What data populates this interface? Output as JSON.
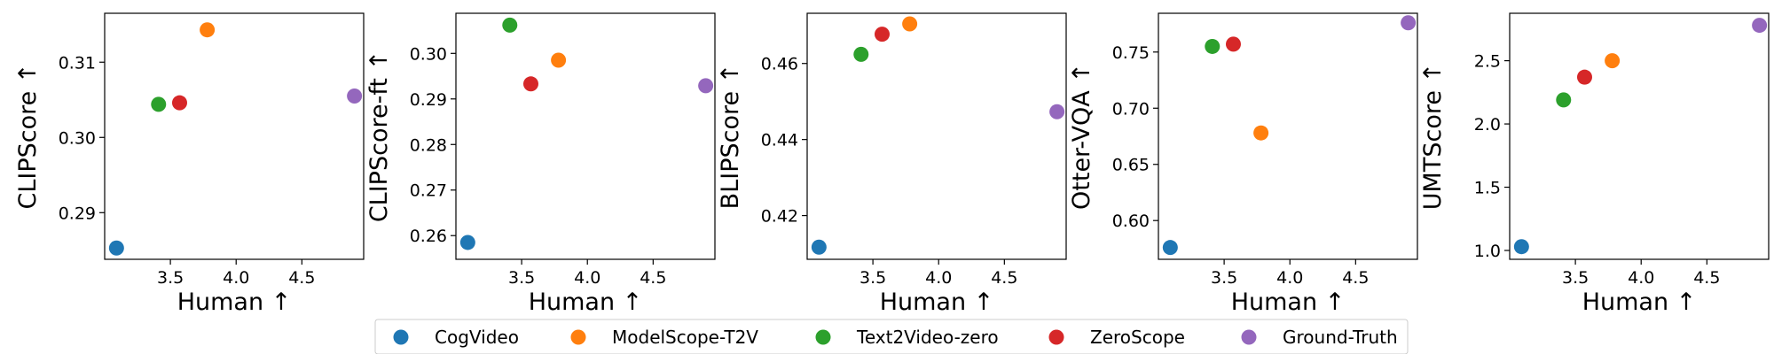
{
  "chart_data": {
    "type": "scatter",
    "series_names": [
      "CogVideo",
      "ModelScope-T2V",
      "Text2Video-zero",
      "ZeroScope",
      "Ground-Truth"
    ],
    "colors": {
      "CogVideo": "#1f77b4",
      "ModelScope-T2V": "#ff7f0e",
      "Text2Video-zero": "#2ca02c",
      "ZeroScope": "#d62728",
      "Ground-Truth": "#9467bd"
    },
    "legend": {
      "placement": "bottom-center",
      "entries": [
        "CogVideo",
        "ModelScope-T2V",
        "Text2Video-zero",
        "ZeroScope",
        "Ground-Truth"
      ]
    },
    "human_scores": {
      "CogVideo": 3.09,
      "ModelScope-T2V": 3.78,
      "Text2Video-zero": 3.41,
      "ZeroScope": 3.57,
      "Ground-Truth": 4.9
    },
    "panels": [
      {
        "xlabel": "Human ↑",
        "ylabel": "CLIPScore ↑",
        "xlim": [
          3.0,
          4.97
        ],
        "ylim": [
          0.2838,
          0.3165
        ],
        "xticks": [
          3.5,
          4.0,
          4.5
        ],
        "xtick_labels": [
          "3.5",
          "4.0",
          "4.5"
        ],
        "yticks": [
          0.29,
          0.3,
          0.31
        ],
        "ytick_labels": [
          "0.29",
          "0.30",
          "0.31"
        ],
        "y_values": {
          "CogVideo": 0.2853,
          "ModelScope-T2V": 0.3143,
          "Text2Video-zero": 0.3044,
          "ZeroScope": 0.3046,
          "Ground-Truth": 0.3055
        }
      },
      {
        "xlabel": "Human ↑",
        "ylabel": "CLIPScore-ft ↑",
        "xlim": [
          3.0,
          4.97
        ],
        "ylim": [
          0.2548,
          0.3088
        ],
        "xticks": [
          3.5,
          4.0,
          4.5
        ],
        "xtick_labels": [
          "3.5",
          "4.0",
          "4.5"
        ],
        "yticks": [
          0.26,
          0.27,
          0.28,
          0.29,
          0.3
        ],
        "ytick_labels": [
          "0.26",
          "0.27",
          "0.28",
          "0.29",
          "0.30"
        ],
        "y_values": {
          "CogVideo": 0.2585,
          "ModelScope-T2V": 0.2985,
          "Text2Video-zero": 0.3062,
          "ZeroScope": 0.2933,
          "Ground-Truth": 0.2929
        }
      },
      {
        "xlabel": "Human ↑",
        "ylabel": "BLIPScore ↑",
        "xlim": [
          3.0,
          4.97
        ],
        "ylim": [
          0.4085,
          0.4732
        ],
        "xticks": [
          3.5,
          4.0,
          4.5
        ],
        "xtick_labels": [
          "3.5",
          "4.0",
          "4.5"
        ],
        "yticks": [
          0.42,
          0.44,
          0.46
        ],
        "ytick_labels": [
          "0.42",
          "0.44",
          "0.46"
        ],
        "y_values": {
          "CogVideo": 0.4117,
          "ModelScope-T2V": 0.4704,
          "Text2Video-zero": 0.4624,
          "ZeroScope": 0.4677,
          "Ground-Truth": 0.4473
        }
      },
      {
        "xlabel": "Human ↑",
        "ylabel": "Otter-VQA ↑",
        "xlim": [
          3.0,
          4.97
        ],
        "ylim": [
          0.5655,
          0.7845
        ],
        "xticks": [
          3.5,
          4.0,
          4.5
        ],
        "xtick_labels": [
          "3.5",
          "4.0",
          "4.5"
        ],
        "yticks": [
          0.6,
          0.65,
          0.7,
          0.75
        ],
        "ytick_labels": [
          "0.60",
          "0.65",
          "0.70",
          "0.75"
        ],
        "y_values": {
          "CogVideo": 0.576,
          "ModelScope-T2V": 0.678,
          "Text2Video-zero": 0.755,
          "ZeroScope": 0.757,
          "Ground-Truth": 0.776
        }
      },
      {
        "xlabel": "Human ↑",
        "ylabel": "UMTScore ↑",
        "xlim": [
          3.0,
          4.97
        ],
        "ylim": [
          0.93,
          2.875
        ],
        "xticks": [
          3.5,
          4.0,
          4.5
        ],
        "xtick_labels": [
          "3.5",
          "4.0",
          "4.5"
        ],
        "yticks": [
          1.0,
          1.5,
          2.0,
          2.5
        ],
        "ytick_labels": [
          "1.0",
          "1.5",
          "2.0",
          "2.5"
        ],
        "y_values": {
          "CogVideo": 1.03,
          "ModelScope-T2V": 2.5,
          "Text2Video-zero": 2.19,
          "ZeroScope": 2.37,
          "Ground-Truth": 2.78
        }
      }
    ]
  }
}
